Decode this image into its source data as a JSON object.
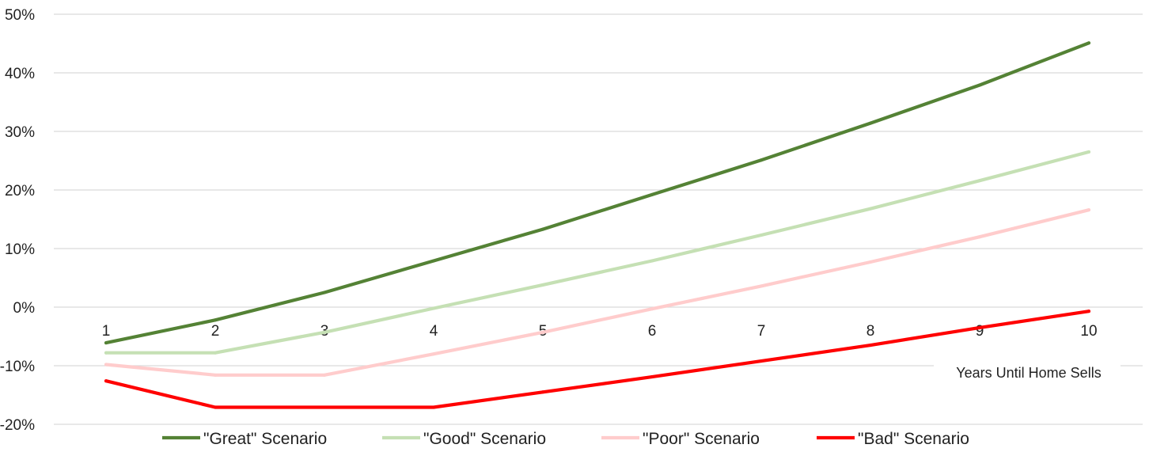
{
  "chart_data": {
    "type": "line",
    "title": "",
    "xlabel": "Years Until Home Sells",
    "ylabel": "",
    "x": [
      1,
      2,
      3,
      4,
      5,
      6,
      7,
      8,
      9,
      10
    ],
    "ylim": [
      -20,
      50
    ],
    "yticks": [
      -20,
      -10,
      0,
      10,
      20,
      30,
      40,
      50
    ],
    "ytick_labels": [
      "-20%",
      "-10%",
      "0%",
      "10%",
      "20%",
      "30%",
      "40%",
      "50%"
    ],
    "xtick_labels": [
      "1",
      "2",
      "3",
      "4",
      "5",
      "6",
      "7",
      "8",
      "9",
      "10"
    ],
    "grid": true,
    "legend_position": "bottom",
    "series": [
      {
        "name": "\"Great\" Scenario",
        "color": "#548235",
        "values": [
          -6.1,
          -2.2,
          2.5,
          7.9,
          13.3,
          19.2,
          25.1,
          31.4,
          37.9,
          45.1
        ]
      },
      {
        "name": "\"Good\" Scenario",
        "color": "#c5e0b4",
        "values": [
          -7.8,
          -7.8,
          -4.3,
          -0.2,
          3.8,
          7.9,
          12.3,
          16.8,
          21.6,
          26.5
        ]
      },
      {
        "name": "\"Poor\" Scenario",
        "color": "#ffcccc",
        "values": [
          -9.8,
          -11.6,
          -11.6,
          -8.0,
          -4.3,
          -0.3,
          3.6,
          7.7,
          12.0,
          16.6
        ]
      },
      {
        "name": "\"Bad\" Scenario",
        "color": "#ff0000",
        "values": [
          -12.6,
          -17.1,
          -17.1,
          -17.1,
          -14.5,
          -11.9,
          -9.2,
          -6.5,
          -3.5,
          -0.7
        ]
      }
    ]
  }
}
